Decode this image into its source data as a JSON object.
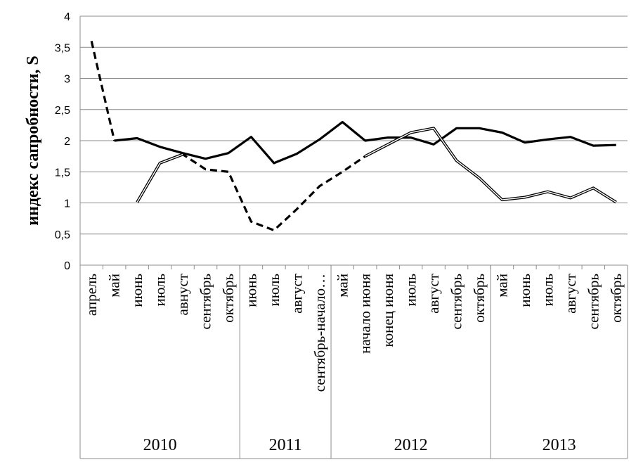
{
  "chart_data": {
    "type": "line",
    "ylabel": "индекс сапробности, S",
    "ylim": [
      0,
      4
    ],
    "yticks": [
      "0",
      "0,5",
      "1",
      "1,5",
      "2",
      "2,5",
      "3",
      "3,5",
      "4"
    ],
    "grid": true,
    "categories": [
      "апрель",
      "май",
      "июнь",
      "июль",
      "авнуст",
      "сентябрь",
      "октябрь",
      "июнь",
      "июль",
      "август",
      "сентябрь-начало…",
      "май",
      "начало июня",
      "конец июня",
      "июль",
      "август",
      "сентябрь",
      "октябрь",
      "май",
      "июнь",
      "июль",
      "август",
      "сентябрь",
      "октябрь"
    ],
    "groups": [
      {
        "label": "2010",
        "start": 0,
        "count": 7
      },
      {
        "label": "2011",
        "start": 7,
        "count": 4
      },
      {
        "label": "2012",
        "start": 11,
        "count": 7
      },
      {
        "label": "2013",
        "start": 18,
        "count": 6
      }
    ],
    "series": [
      {
        "style": "solid-bold",
        "values": [
          null,
          2.0,
          2.04,
          1.9,
          1.8,
          1.71,
          1.8,
          2.06,
          1.64,
          1.79,
          2.02,
          2.3,
          2.0,
          2.05,
          2.05,
          1.94,
          2.2,
          2.2,
          2.13,
          1.97,
          2.02,
          2.06,
          1.92,
          1.93
        ]
      },
      {
        "style": "dashed-bold",
        "values": [
          3.6,
          2.0,
          null,
          1.64,
          1.78,
          1.54,
          1.5,
          0.7,
          0.56,
          0.9,
          1.27,
          1.5,
          1.75,
          null,
          null,
          null,
          null,
          null,
          null,
          null,
          null,
          null,
          null,
          null
        ]
      },
      {
        "style": "double",
        "values": [
          null,
          null,
          1.01,
          1.64,
          1.78,
          null,
          null,
          null,
          null,
          null,
          null,
          null,
          1.75,
          1.94,
          2.13,
          2.2,
          1.68,
          1.4,
          1.05,
          1.09,
          1.18,
          1.08,
          1.24,
          1.01
        ]
      }
    ]
  }
}
